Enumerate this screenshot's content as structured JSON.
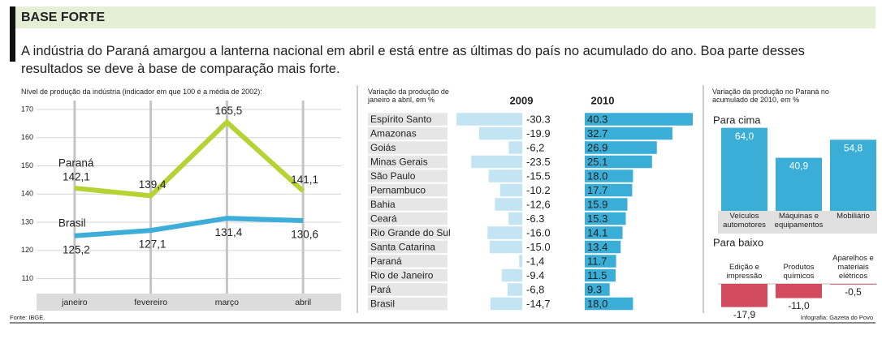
{
  "title": "BASE FORTE",
  "intro": "A indústria do Paraná amargou a lanterna nacional em abril e está entre as últimas do país no acumulado do ano. Boa parte desses resultados se deve à base de comparação mais forte.",
  "source": "Fonte: IBGE.",
  "credit": "Infografia: Gazeta do Povo",
  "chart_data": [
    {
      "type": "line",
      "title": "Nível de produção da indústria (indicador em que 100 é a média de 2002):",
      "categories": [
        "janeiro",
        "fevereiro",
        "março",
        "abril"
      ],
      "series": [
        {
          "name": "Paraná",
          "color": "#b6d334",
          "values": [
            142.1,
            139.4,
            165.5,
            141.1
          ],
          "value_labels": [
            "142,1",
            "139,4",
            "165,5",
            "141,1"
          ]
        },
        {
          "name": "Brasil",
          "color": "#3eaed8",
          "values": [
            125.2,
            127.1,
            131.4,
            130.6
          ],
          "value_labels": [
            "125,2",
            "127,1",
            "131,4",
            "130,6"
          ]
        }
      ],
      "ylim": [
        105,
        172
      ],
      "yticks": [
        110,
        120,
        130,
        140,
        150,
        160,
        170
      ],
      "grid": true
    },
    {
      "type": "bar",
      "orientation": "horizontal",
      "title": "Variação da produção de janeiro a abril, em %",
      "categories": [
        "Espírito Santo",
        "Amazonas",
        "Goiás",
        "Minas Gerais",
        "São Paulo",
        "Pernambuco",
        "Bahia",
        "Ceará",
        "Rio Grande do Sul",
        "Santa Catarina",
        "Paraná",
        "Rio de Janeiro",
        "Pará",
        "Brasil"
      ],
      "series": [
        {
          "name": "2009",
          "color": "#c3e4f2",
          "values": [
            -30.3,
            -19.9,
            -6.2,
            -23.5,
            -15.5,
            -10.2,
            -12.6,
            -6.3,
            -16.0,
            -15.0,
            -1.4,
            -9.4,
            -6.8,
            -14.7
          ],
          "value_labels": [
            "-30.3",
            "-19.9",
            "-6,2",
            "-23.5",
            "-15.5",
            "-10.2",
            "-12,6",
            "-6.3",
            "-16.0",
            "-15.0",
            "-1,4",
            "-9.4",
            "-6,8",
            "-14,7"
          ]
        },
        {
          "name": "2010",
          "color": "#3aaed6",
          "values": [
            40.3,
            32.7,
            26.9,
            25.1,
            18.0,
            17.7,
            15.9,
            15.3,
            14.1,
            13.4,
            11.7,
            11.5,
            9.3,
            18.0
          ],
          "value_labels": [
            "40.3",
            "32.7",
            "26.9",
            "25.1",
            "18.0",
            "17.7",
            "15.9",
            "15.3",
            "14.1",
            "13.4",
            "11.7",
            "11.5",
            "9.3",
            "18,0"
          ]
        }
      ]
    },
    {
      "type": "bar",
      "title": "Variação da produção no Paraná no acumulado de 2010, em %",
      "subtitle": "Para cima",
      "categories": [
        "Veículos automotores",
        "Máquinas e equipamentos",
        "Mobiliário"
      ],
      "values": [
        64.0,
        40.9,
        54.8
      ],
      "value_labels": [
        "64,0",
        "40,9",
        "54,8"
      ],
      "color": "#3aaed6"
    },
    {
      "type": "bar",
      "subtitle": "Para baixo",
      "categories": [
        "Edição e impressão",
        "Produtos químicos",
        "Aparelhos e materiais elétricos"
      ],
      "values": [
        -17.9,
        -11.0,
        -0.5
      ],
      "value_labels": [
        "-17,9",
        "-11,0",
        "-0,5"
      ],
      "color": "#d24b5f"
    }
  ]
}
